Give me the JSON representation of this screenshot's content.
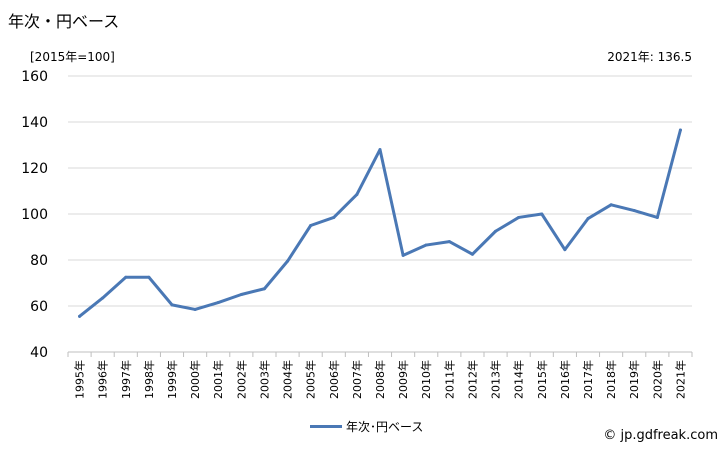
{
  "chart_data": {
    "type": "line",
    "title": "年次・円ベース",
    "unit_label": "[2015年=100]",
    "annotation": "2021年: 136.5",
    "legend": "年次･円ベース",
    "credit": "© jp.gdfreak.com",
    "color": "#4a78b5",
    "ylim": [
      40,
      160
    ],
    "yticks": [
      40,
      60,
      80,
      100,
      120,
      140,
      160
    ],
    "categories": [
      "1995年",
      "1996年",
      "1997年",
      "1998年",
      "1999年",
      "2000年",
      "2001年",
      "2002年",
      "2003年",
      "2004年",
      "2005年",
      "2006年",
      "2007年",
      "2008年",
      "2009年",
      "2010年",
      "2011年",
      "2012年",
      "2013年",
      "2014年",
      "2015年",
      "2016年",
      "2017年",
      "2018年",
      "2019年",
      "2020年",
      "2021年"
    ],
    "series": [
      {
        "name": "年次･円ベース",
        "values": [
          55.5,
          63.5,
          72.5,
          72.5,
          60.5,
          58.5,
          61.5,
          65,
          67.5,
          79.5,
          95,
          98.5,
          108.5,
          128,
          82,
          86.5,
          88,
          82.5,
          92.5,
          98.5,
          100,
          84.5,
          98,
          104,
          101.5,
          98.5,
          136.5
        ]
      }
    ],
    "grid": "horizontal"
  }
}
